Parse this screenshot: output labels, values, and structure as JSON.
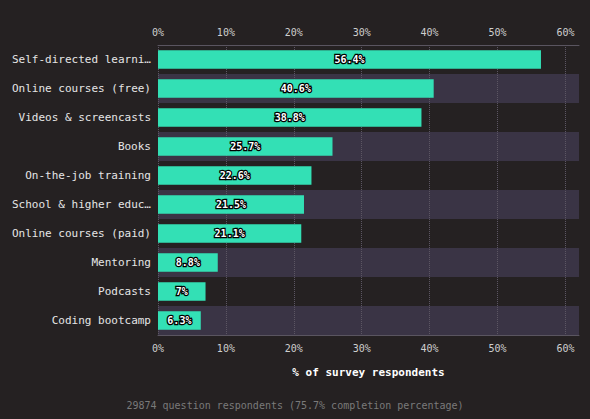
{
  "chart_data": {
    "type": "bar",
    "orientation": "horizontal",
    "categories": [
      "Self-directed learni…",
      "Online courses (free)",
      "Videos & screencasts",
      "Books",
      "On-the-job training",
      "School & higher educ…",
      "Online courses (paid)",
      "Mentoring",
      "Podcasts",
      "Coding bootcamp"
    ],
    "values": [
      56.4,
      40.6,
      38.8,
      25.7,
      22.6,
      21.5,
      21.1,
      8.8,
      7,
      6.3
    ],
    "value_labels": [
      "56.4%",
      "40.6%",
      "38.8%",
      "25.7%",
      "22.6%",
      "21.5%",
      "21.1%",
      "8.8%",
      "7%",
      "6.3%"
    ],
    "data_labels": true,
    "color": "#33e0b5",
    "xlabel": "% of survey respondents",
    "xlim": [
      0,
      62
    ],
    "xticks": [
      {
        "value": 0,
        "label": "0%"
      },
      {
        "value": 10,
        "label": "10%"
      },
      {
        "value": 20,
        "label": "20%"
      },
      {
        "value": 30,
        "label": "30%"
      },
      {
        "value": 40,
        "label": "40%"
      },
      {
        "value": 50,
        "label": "50%"
      },
      {
        "value": 60,
        "label": "60%"
      }
    ],
    "grid": true,
    "annotation": "29874 question respondents (75.7% completion percentage)"
  }
}
